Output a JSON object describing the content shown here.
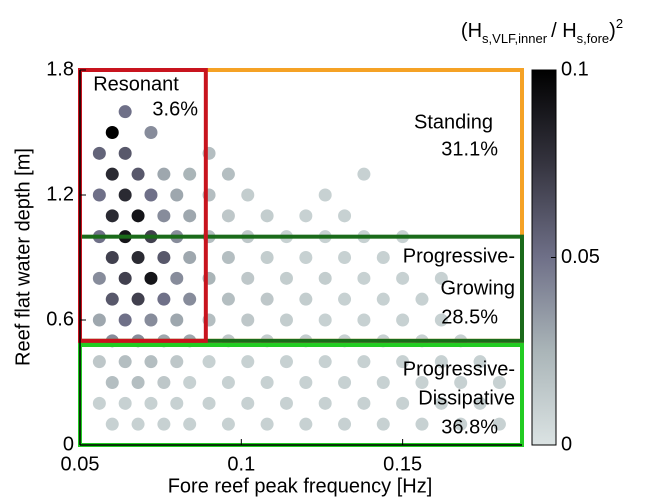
{
  "chart_data": {
    "type": "scatter",
    "xlabel": "Fore reef peak frequency [Hz]",
    "ylabel": "Reef flat water depth [m]",
    "xlim": [
      0.05,
      0.187
    ],
    "ylim": [
      0,
      1.8
    ],
    "xticks": [
      0.05,
      0.1,
      0.15
    ],
    "yticks": [
      0,
      0.6,
      1.2,
      1.8
    ],
    "colorbar": {
      "title_parts": [
        "(H",
        "s,VLF,inner",
        "/ H",
        "s,fore",
        ")",
        "2"
      ],
      "lim": [
        0,
        0.1
      ],
      "ticks": [
        0,
        0.05,
        0.1
      ],
      "colormap": [
        "#dbe3e3",
        "#aab5b8",
        "#6f7088",
        "#35343f",
        "#000000"
      ]
    },
    "regions": [
      {
        "label": [
          "Standing"
        ],
        "value": 31.1,
        "value_label": "31.1%",
        "x": [
          0.05,
          0.187
        ],
        "y": [
          0.5,
          1.8
        ],
        "color": "#f5a225"
      },
      {
        "label": [
          "Progressive-",
          "Growing"
        ],
        "value": 28.5,
        "value_label": "28.5%",
        "x": [
          0.05,
          0.187
        ],
        "y": [
          0.5,
          1.0
        ],
        "color": "#1a6b1a"
      },
      {
        "label": [
          "Resonant"
        ],
        "value": 3.6,
        "value_label": "3.6%",
        "x": [
          0.05,
          0.089
        ],
        "y": [
          0.5,
          1.8
        ],
        "color": "#c8141e"
      },
      {
        "label": [
          "Progressive-",
          "Dissipative"
        ],
        "value": 36.8,
        "value_label": "36.8%",
        "x": [
          0.05,
          0.187
        ],
        "y": [
          0,
          0.48
        ],
        "color": "#22cc22"
      }
    ],
    "points": [
      [
        0.056,
        0.2,
        0.01
      ],
      [
        0.056,
        0.4,
        0.015
      ],
      [
        0.056,
        0.6,
        0.03
      ],
      [
        0.056,
        0.8,
        0.04
      ],
      [
        0.056,
        1.0,
        0.05
      ],
      [
        0.056,
        1.2,
        0.05
      ],
      [
        0.056,
        1.4,
        0.055
      ],
      [
        0.06,
        0.1,
        0.01
      ],
      [
        0.06,
        0.3,
        0.02
      ],
      [
        0.06,
        0.5,
        0.04
      ],
      [
        0.06,
        0.7,
        0.06
      ],
      [
        0.06,
        0.9,
        0.07
      ],
      [
        0.06,
        1.1,
        0.08
      ],
      [
        0.06,
        1.3,
        0.08
      ],
      [
        0.06,
        1.5,
        0.1
      ],
      [
        0.064,
        0.2,
        0.01
      ],
      [
        0.064,
        0.4,
        0.02
      ],
      [
        0.064,
        0.6,
        0.05
      ],
      [
        0.064,
        0.8,
        0.07
      ],
      [
        0.064,
        1.0,
        0.09
      ],
      [
        0.064,
        1.2,
        0.08
      ],
      [
        0.064,
        1.4,
        0.06
      ],
      [
        0.064,
        1.6,
        0.05
      ],
      [
        0.068,
        0.1,
        0.01
      ],
      [
        0.068,
        0.3,
        0.02
      ],
      [
        0.068,
        0.5,
        0.04
      ],
      [
        0.068,
        0.7,
        0.07
      ],
      [
        0.068,
        0.9,
        0.08
      ],
      [
        0.068,
        1.1,
        0.09
      ],
      [
        0.068,
        1.3,
        0.06
      ],
      [
        0.072,
        0.2,
        0.01
      ],
      [
        0.072,
        0.4,
        0.02
      ],
      [
        0.072,
        0.6,
        0.04
      ],
      [
        0.072,
        0.8,
        0.09
      ],
      [
        0.072,
        1.0,
        0.07
      ],
      [
        0.072,
        1.2,
        0.05
      ],
      [
        0.072,
        1.5,
        0.04
      ],
      [
        0.076,
        0.1,
        0.01
      ],
      [
        0.076,
        0.3,
        0.015
      ],
      [
        0.076,
        0.5,
        0.03
      ],
      [
        0.076,
        0.7,
        0.05
      ],
      [
        0.076,
        0.9,
        0.06
      ],
      [
        0.076,
        1.1,
        0.04
      ],
      [
        0.076,
        1.3,
        0.03
      ],
      [
        0.08,
        0.2,
        0.01
      ],
      [
        0.08,
        0.4,
        0.015
      ],
      [
        0.08,
        0.6,
        0.03
      ],
      [
        0.08,
        0.8,
        0.04
      ],
      [
        0.08,
        1.0,
        0.04
      ],
      [
        0.08,
        1.2,
        0.03
      ],
      [
        0.084,
        0.1,
        0.01
      ],
      [
        0.084,
        0.3,
        0.01
      ],
      [
        0.084,
        0.5,
        0.03
      ],
      [
        0.084,
        0.7,
        0.04
      ],
      [
        0.084,
        0.9,
        0.03
      ],
      [
        0.084,
        1.1,
        0.03
      ],
      [
        0.084,
        1.3,
        0.025
      ],
      [
        0.09,
        0.2,
        0.01
      ],
      [
        0.09,
        0.4,
        0.01
      ],
      [
        0.09,
        0.6,
        0.02
      ],
      [
        0.09,
        0.8,
        0.025
      ],
      [
        0.09,
        1.0,
        0.02
      ],
      [
        0.09,
        1.2,
        0.02
      ],
      [
        0.09,
        1.4,
        0.02
      ],
      [
        0.096,
        0.1,
        0.01
      ],
      [
        0.096,
        0.3,
        0.01
      ],
      [
        0.096,
        0.5,
        0.015
      ],
      [
        0.096,
        0.7,
        0.02
      ],
      [
        0.096,
        0.9,
        0.02
      ],
      [
        0.096,
        1.1,
        0.015
      ],
      [
        0.096,
        1.3,
        0.02
      ],
      [
        0.102,
        0.2,
        0.01
      ],
      [
        0.102,
        0.4,
        0.01
      ],
      [
        0.102,
        0.6,
        0.015
      ],
      [
        0.102,
        0.8,
        0.015
      ],
      [
        0.102,
        1.0,
        0.015
      ],
      [
        0.102,
        1.2,
        0.012
      ],
      [
        0.108,
        0.1,
        0.01
      ],
      [
        0.108,
        0.3,
        0.01
      ],
      [
        0.108,
        0.5,
        0.012
      ],
      [
        0.108,
        0.7,
        0.015
      ],
      [
        0.108,
        0.9,
        0.012
      ],
      [
        0.108,
        1.1,
        0.012
      ],
      [
        0.114,
        0.2,
        0.01
      ],
      [
        0.114,
        0.4,
        0.01
      ],
      [
        0.114,
        0.6,
        0.012
      ],
      [
        0.114,
        0.8,
        0.012
      ],
      [
        0.114,
        1.0,
        0.01
      ],
      [
        0.12,
        0.1,
        0.01
      ],
      [
        0.12,
        0.3,
        0.01
      ],
      [
        0.12,
        0.5,
        0.012
      ],
      [
        0.12,
        0.7,
        0.012
      ],
      [
        0.12,
        0.9,
        0.01
      ],
      [
        0.12,
        1.1,
        0.01
      ],
      [
        0.126,
        0.2,
        0.01
      ],
      [
        0.126,
        0.4,
        0.01
      ],
      [
        0.126,
        0.6,
        0.01
      ],
      [
        0.126,
        0.8,
        0.012
      ],
      [
        0.126,
        1.0,
        0.01
      ],
      [
        0.126,
        1.2,
        0.01
      ],
      [
        0.132,
        0.1,
        0.01
      ],
      [
        0.132,
        0.3,
        0.01
      ],
      [
        0.132,
        0.5,
        0.01
      ],
      [
        0.132,
        0.7,
        0.01
      ],
      [
        0.132,
        0.9,
        0.01
      ],
      [
        0.132,
        1.1,
        0.01
      ],
      [
        0.138,
        0.2,
        0.01
      ],
      [
        0.138,
        0.4,
        0.01
      ],
      [
        0.138,
        0.6,
        0.01
      ],
      [
        0.138,
        0.8,
        0.01
      ],
      [
        0.138,
        1.0,
        0.01
      ],
      [
        0.138,
        1.3,
        0.01
      ],
      [
        0.144,
        0.1,
        0.01
      ],
      [
        0.144,
        0.3,
        0.01
      ],
      [
        0.144,
        0.5,
        0.01
      ],
      [
        0.144,
        0.7,
        0.01
      ],
      [
        0.144,
        0.9,
        0.01
      ],
      [
        0.15,
        0.2,
        0.01
      ],
      [
        0.15,
        0.4,
        0.01
      ],
      [
        0.15,
        0.6,
        0.01
      ],
      [
        0.15,
        0.8,
        0.01
      ],
      [
        0.15,
        1.0,
        0.01
      ],
      [
        0.156,
        0.1,
        0.01
      ],
      [
        0.156,
        0.3,
        0.01
      ],
      [
        0.156,
        0.5,
        0.01
      ],
      [
        0.156,
        0.7,
        0.01
      ],
      [
        0.162,
        0.2,
        0.01
      ],
      [
        0.162,
        0.4,
        0.01
      ],
      [
        0.162,
        0.6,
        0.01
      ],
      [
        0.162,
        0.8,
        0.01
      ],
      [
        0.168,
        0.1,
        0.01
      ],
      [
        0.168,
        0.3,
        0.01
      ],
      [
        0.168,
        0.5,
        0.01
      ],
      [
        0.174,
        0.2,
        0.01
      ],
      [
        0.174,
        0.4,
        0.01
      ],
      [
        0.18,
        0.1,
        0.01
      ],
      [
        0.18,
        0.3,
        0.01
      ]
    ]
  }
}
